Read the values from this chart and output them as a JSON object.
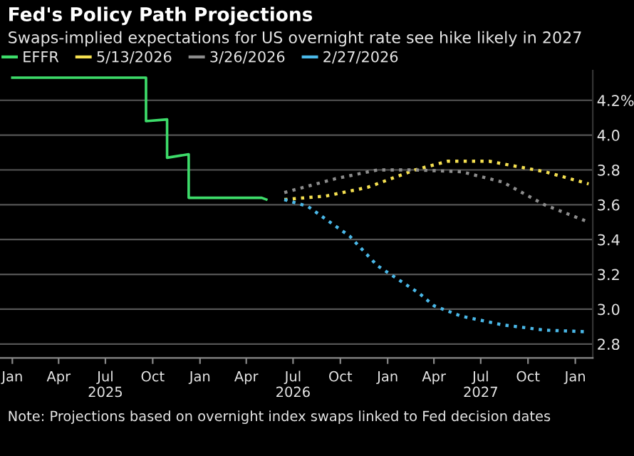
{
  "chart_data": {
    "type": "line",
    "title": "Fed's Policy Path Projections",
    "subtitle": "Swaps-implied expectations for US overnight rate see hike likely in 2027",
    "series": [
      {
        "name": "EFFR",
        "color": "#3ddc6a",
        "line_style": "solid",
        "x": [
          "2025-01-01",
          "2025-09-18",
          "2025-09-18",
          "2025-10-29",
          "2025-10-29",
          "2025-12-10",
          "2025-12-10",
          "2026-05-01",
          "2026-05-10"
        ],
        "values": [
          4.33,
          4.33,
          4.08,
          4.09,
          3.87,
          3.89,
          3.64,
          3.64,
          3.63
        ]
      },
      {
        "name": "5/13/2026",
        "color": "#f5e050",
        "line_style": "dotted",
        "x": [
          "2026-06-14",
          "2026-09-03",
          "2026-11-23",
          "2027-02-23",
          "2027-04-28",
          "2027-07-17",
          "2027-11-02",
          "2028-01-27"
        ],
        "values": [
          3.63,
          3.65,
          3.7,
          3.8,
          3.85,
          3.85,
          3.79,
          3.72
        ]
      },
      {
        "name": "3/26/2026",
        "color": "#8c8c8c",
        "line_style": "dotted",
        "x": [
          "2026-06-14",
          "2026-09-22",
          "2026-12-12",
          "2027-02-23",
          "2027-05-24",
          "2027-08-13",
          "2027-11-02",
          "2028-01-27"
        ],
        "values": [
          3.67,
          3.75,
          3.8,
          3.8,
          3.79,
          3.73,
          3.6,
          3.5
        ]
      },
      {
        "name": "2/27/2026",
        "color": "#4ab8e8",
        "line_style": "dotted",
        "x": [
          "2026-06-14",
          "2026-07-30",
          "2026-10-19",
          "2026-12-12",
          "2027-03-04",
          "2027-04-01",
          "2027-05-24",
          "2027-08-13",
          "2027-11-02",
          "2028-01-27"
        ],
        "values": [
          3.63,
          3.59,
          3.42,
          3.25,
          3.09,
          3.02,
          2.96,
          2.91,
          2.88,
          2.87
        ]
      }
    ],
    "xlim": [
      "2024-12-08",
      "2028-02-04"
    ],
    "xticks": [
      {
        "value": "2025-01-01",
        "label": "Jan"
      },
      {
        "value": "2025-04-01",
        "label": "Apr"
      },
      {
        "value": "2025-07-01",
        "label": "Jul\n2025"
      },
      {
        "value": "2025-10-01",
        "label": "Oct"
      },
      {
        "value": "2026-01-01",
        "label": "Jan"
      },
      {
        "value": "2026-04-01",
        "label": "Apr"
      },
      {
        "value": "2026-07-01",
        "label": "Jul\n2026"
      },
      {
        "value": "2026-10-01",
        "label": "Oct"
      },
      {
        "value": "2027-01-01",
        "label": "Jan"
      },
      {
        "value": "2027-04-01",
        "label": "Apr"
      },
      {
        "value": "2027-07-01",
        "label": "Jul\n2027"
      },
      {
        "value": "2027-10-01",
        "label": "Oct"
      },
      {
        "value": "2028-01-01",
        "label": "Jan"
      }
    ],
    "ylim": [
      2.72,
      4.37
    ],
    "yticks": [
      2.8,
      {
        "value": 3.0,
        "label": "3.0"
      },
      3.2,
      3.4,
      3.6,
      3.8,
      {
        "value": 4.0,
        "label": "4.0"
      },
      {
        "value": 4.2,
        "label": "4.2%"
      }
    ],
    "grid": "y",
    "legend": "top left",
    "annotations": [
      "Note: Projections based on overnight index swaps linked to Fed decision dates"
    ]
  }
}
